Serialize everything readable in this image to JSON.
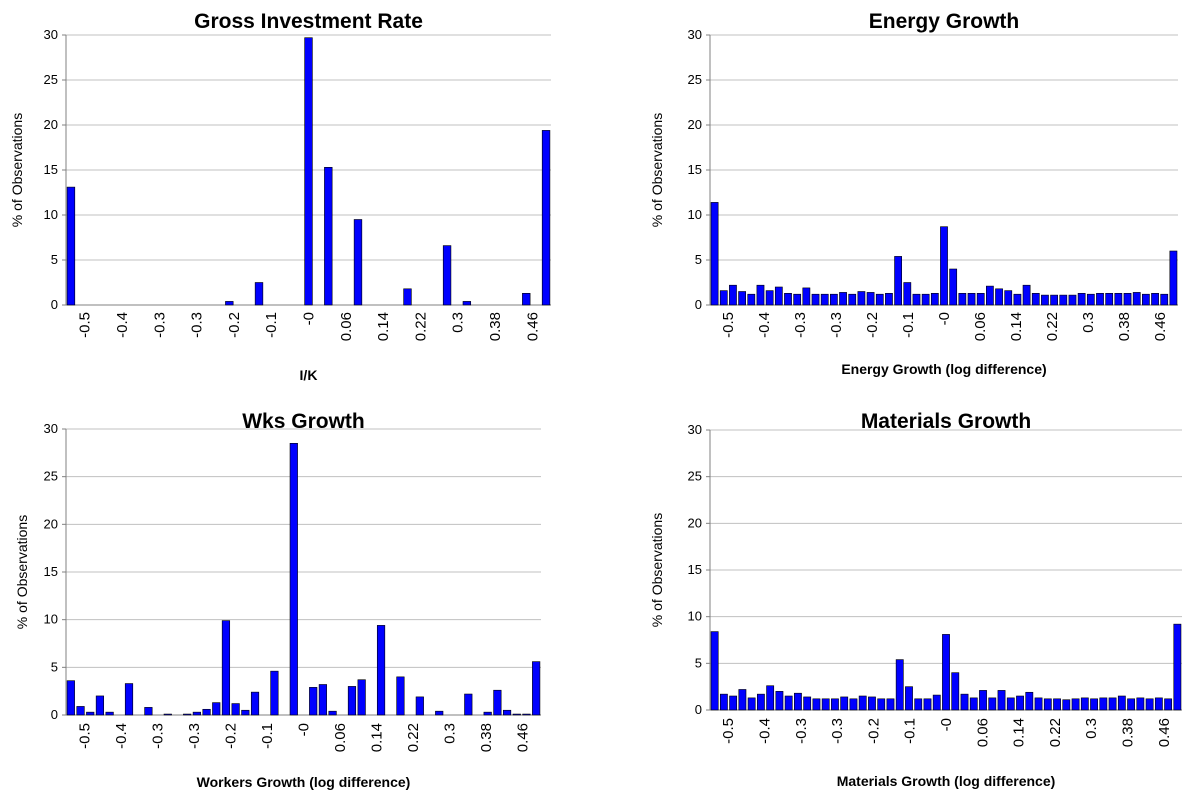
{
  "chart_data": [
    {
      "type": "bar",
      "title": "Gross Investment Rate",
      "xlabel": "I/K",
      "ylabel": "% of Observations",
      "ylim": [
        0,
        30
      ],
      "yticks": [
        "0",
        "5",
        "10",
        "15",
        "20",
        "25",
        "30"
      ],
      "grid": true,
      "legend": "none",
      "bar_color": "#0000ff",
      "x_tick_labels": [
        "-0.5",
        "-0.4",
        "-0.3",
        "-0.3",
        "-0.2",
        "-0.1",
        "-0",
        "0.06",
        "0.14",
        "0.22",
        "0.3",
        "0.38",
        "0.46"
      ],
      "values": [
        13.1,
        0,
        0,
        0,
        0,
        0,
        0,
        0,
        0,
        0,
        0,
        0,
        0,
        0,
        0,
        0,
        0.4,
        0,
        0,
        2.5,
        0,
        0,
        0,
        0,
        29.7,
        0,
        15.3,
        0,
        0,
        9.5,
        0,
        0,
        0,
        0,
        1.8,
        0,
        0,
        0,
        6.6,
        0,
        0.4,
        0,
        0,
        0,
        0,
        0,
        1.3,
        0,
        19.4
      ]
    },
    {
      "type": "bar",
      "title": "Energy Growth",
      "xlabel": "Energy Growth (log difference)",
      "ylabel": "% of Observations",
      "ylim": [
        0,
        30
      ],
      "yticks": [
        "0",
        "5",
        "10",
        "15",
        "20",
        "25",
        "30"
      ],
      "grid": true,
      "legend": "none",
      "bar_color": "#0000ff",
      "x_tick_labels": [
        "-0.5",
        "-0.4",
        "-0.3",
        "-0.3",
        "-0.2",
        "-0.1",
        "-0",
        "0.06",
        "0.14",
        "0.22",
        "0.3",
        "0.38",
        "0.46"
      ],
      "values": [
        11.4,
        1.6,
        2.2,
        1.5,
        1.2,
        2.2,
        1.6,
        2,
        1.3,
        1.2,
        1.9,
        1.2,
        1.2,
        1.2,
        1.4,
        1.2,
        1.5,
        1.4,
        1.2,
        1.3,
        5.4,
        2.5,
        1.2,
        1.2,
        1.3,
        8.7,
        4,
        1.3,
        1.3,
        1.3,
        2.1,
        1.8,
        1.6,
        1.2,
        2.2,
        1.3,
        1.1,
        1.1,
        1.1,
        1.1,
        1.3,
        1.2,
        1.3,
        1.3,
        1.3,
        1.3,
        1.4,
        1.2,
        1.3,
        1.2,
        6
      ]
    },
    {
      "type": "bar",
      "title": "Wks Growth",
      "xlabel": "Workers Growth (log difference)",
      "ylabel": "% of Observations",
      "ylim": [
        0,
        30
      ],
      "yticks": [
        "0",
        "5",
        "10",
        "15",
        "20",
        "25",
        "30"
      ],
      "grid": true,
      "legend": "none",
      "bar_color": "#0000ff",
      "x_tick_labels": [
        "-0.5",
        "-0.4",
        "-0.3",
        "-0.3",
        "-0.2",
        "-0.1",
        "-0",
        "0.06",
        "0.14",
        "0.22",
        "0.3",
        "0.38",
        "0.46"
      ],
      "values": [
        3.6,
        0.9,
        0.3,
        2,
        0.3,
        0,
        3.3,
        0,
        0.8,
        0,
        0.1,
        0,
        0.1,
        0.3,
        0.6,
        1.3,
        9.9,
        1.2,
        0.5,
        2.4,
        0,
        4.6,
        0,
        28.5,
        0,
        2.9,
        3.2,
        0.4,
        0,
        3,
        3.7,
        0,
        9.4,
        0,
        4,
        0,
        1.9,
        0,
        0.4,
        0,
        0,
        2.2,
        0,
        0.3,
        2.6,
        0.5,
        0.1,
        0.1,
        5.6
      ]
    },
    {
      "type": "bar",
      "title": "Materials Growth",
      "xlabel": "Materials Growth (log difference)",
      "ylabel": "% of Observations",
      "ylim": [
        0,
        30
      ],
      "yticks": [
        "0",
        "5",
        "10",
        "15",
        "20",
        "25",
        "30"
      ],
      "grid": true,
      "legend": "none",
      "bar_color": "#0000ff",
      "x_tick_labels": [
        "-0.5",
        "-0.4",
        "-0.3",
        "-0.3",
        "-0.2",
        "-0.1",
        "-0",
        "0.06",
        "0.14",
        "0.22",
        "0.3",
        "0.38",
        "0.46"
      ],
      "values": [
        8.4,
        1.7,
        1.5,
        2.2,
        1.3,
        1.7,
        2.6,
        2,
        1.5,
        1.8,
        1.4,
        1.2,
        1.2,
        1.2,
        1.4,
        1.2,
        1.5,
        1.4,
        1.2,
        1.2,
        5.4,
        2.5,
        1.2,
        1.2,
        1.6,
        8.1,
        4,
        1.7,
        1.3,
        2.1,
        1.3,
        2.1,
        1.3,
        1.5,
        1.9,
        1.3,
        1.2,
        1.2,
        1.1,
        1.2,
        1.3,
        1.2,
        1.3,
        1.3,
        1.5,
        1.2,
        1.3,
        1.2,
        1.3,
        1.2,
        9.2
      ]
    }
  ]
}
